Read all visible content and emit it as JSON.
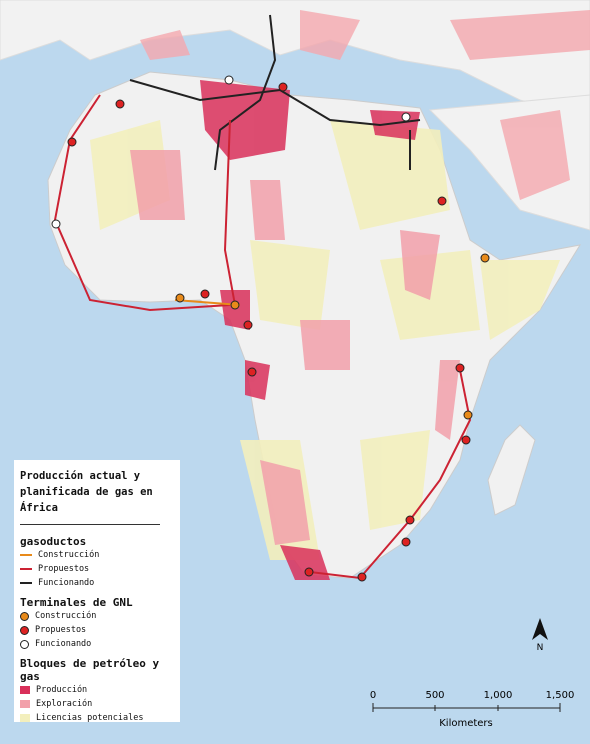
{
  "legend": {
    "title": "Producción actual y planificada de gas en África",
    "sections": [
      {
        "heading": "gasoductos",
        "items": [
          "Construcción",
          "Propuestos",
          "Funcionando"
        ]
      },
      {
        "heading": "Terminales de GNL",
        "items": [
          "Construcción",
          "Propuestos",
          "Funcionando"
        ]
      },
      {
        "heading": "Bloques de petróleo y gas",
        "items": [
          "Producción",
          "Exploración",
          "Licencias potenciales"
        ]
      }
    ]
  },
  "scale_bar": {
    "labels": [
      "0",
      "500",
      "1,000",
      "1,500"
    ],
    "unit": "Kilometers"
  },
  "north_arrow": "N"
}
